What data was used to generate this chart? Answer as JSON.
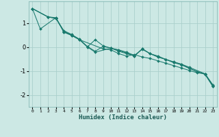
{
  "title": "",
  "xlabel": "Humidex (Indice chaleur)",
  "xlim": [
    -0.5,
    23.5
  ],
  "ylim": [
    -2.5,
    1.9
  ],
  "bg_color": "#cce8e4",
  "line_color": "#1a7a6e",
  "grid_color": "#aacfcc",
  "xticks": [
    0,
    1,
    2,
    3,
    4,
    5,
    6,
    7,
    8,
    9,
    10,
    11,
    12,
    13,
    14,
    15,
    16,
    17,
    18,
    19,
    20,
    21,
    22,
    23
  ],
  "yticks": [
    -2,
    -1,
    0,
    1
  ],
  "series": [
    {
      "x": [
        0,
        1,
        3,
        4,
        5,
        6,
        9,
        10,
        11,
        12,
        13,
        14,
        15,
        16,
        17,
        18,
        19,
        20,
        21,
        22,
        23
      ],
      "y": [
        1.6,
        0.75,
        1.22,
        0.62,
        0.48,
        0.3,
        -0.08,
        -0.12,
        -0.28,
        -0.38,
        -0.32,
        -0.42,
        -0.48,
        -0.58,
        -0.68,
        -0.78,
        -0.88,
        -0.98,
        -1.08,
        -1.12,
        -1.58
      ]
    },
    {
      "x": [
        0,
        2,
        3,
        4,
        5,
        6,
        7,
        8,
        9,
        10,
        11,
        12,
        13,
        14,
        15,
        16,
        17,
        18,
        19,
        20,
        22,
        23
      ],
      "y": [
        1.6,
        1.25,
        1.22,
        0.62,
        0.48,
        0.3,
        0.0,
        0.3,
        0.05,
        -0.05,
        -0.15,
        -0.25,
        -0.38,
        -0.08,
        -0.28,
        -0.42,
        -0.52,
        -0.65,
        -0.72,
        -0.85,
        -1.12,
        -1.62
      ]
    },
    {
      "x": [
        0,
        2,
        3,
        4,
        5,
        6,
        7,
        8,
        9,
        10,
        11,
        12,
        13,
        14,
        15,
        16,
        17,
        18,
        19,
        20,
        21,
        22,
        23
      ],
      "y": [
        1.6,
        1.25,
        1.2,
        0.68,
        0.52,
        0.32,
        0.02,
        -0.18,
        0.02,
        -0.05,
        -0.12,
        -0.22,
        -0.35,
        -0.1,
        -0.28,
        -0.38,
        -0.52,
        -0.62,
        -0.72,
        -0.88,
        -1.05,
        -1.12,
        -1.65
      ]
    },
    {
      "x": [
        0,
        2,
        3,
        4,
        5,
        6,
        7,
        8,
        10,
        11,
        12,
        13,
        14,
        15,
        16,
        17,
        18,
        19,
        20,
        22,
        23
      ],
      "y": [
        1.6,
        1.25,
        1.18,
        0.65,
        0.5,
        0.32,
        0.0,
        -0.22,
        -0.05,
        -0.18,
        -0.28,
        -0.38,
        -0.08,
        -0.28,
        -0.42,
        -0.52,
        -0.65,
        -0.75,
        -0.9,
        -1.15,
        -1.65
      ]
    }
  ]
}
